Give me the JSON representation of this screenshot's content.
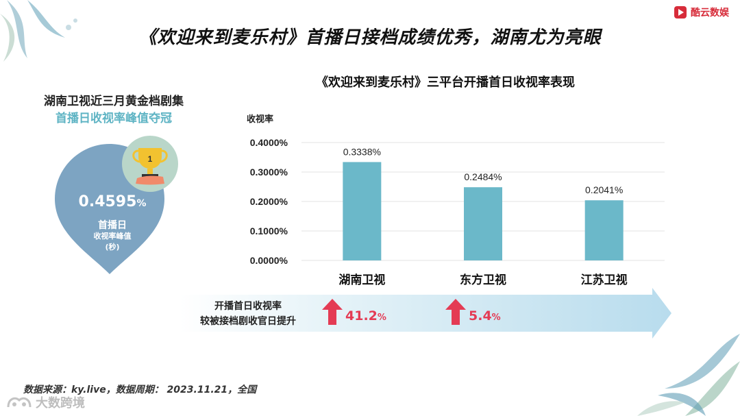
{
  "brand": {
    "name": "酷云数娱",
    "color": "#d72c3a"
  },
  "title": "《欢迎来到麦乐村》首播日接档成绩优秀，湖南尤为亮眼",
  "left_panel": {
    "line1": "湖南卫视近三月黄金档剧集",
    "line2": "首播日收视率峰值夺冠",
    "peak_value": "0.4595",
    "peak_unit": "%",
    "peak_label1": "首播日",
    "peak_label2": "收视率峰值",
    "peak_label3": "(秒)",
    "trophy_rank": "1"
  },
  "chart_data": {
    "type": "bar",
    "title": "《欢迎来到麦乐村》三平台开播首日收视率表现",
    "ylabel": "收视率",
    "xlabel": "",
    "categories": [
      "湖南卫视",
      "东方卫视",
      "江苏卫视"
    ],
    "values": [
      0.3338,
      0.2484,
      0.2041
    ],
    "value_labels": [
      "0.3338%",
      "0.2484%",
      "0.2041%"
    ],
    "ylim": [
      0,
      0.4
    ],
    "yticks": [
      0,
      0.1,
      0.2,
      0.3,
      0.4
    ],
    "ytick_labels": [
      "0.0000%",
      "0.1000%",
      "0.2000%",
      "0.3000%",
      "0.4000%"
    ],
    "grid": true,
    "bar_color": "#6bb8c9"
  },
  "band": {
    "line1": "开播首日收视率",
    "line2": "较被接档剧收官日提升",
    "lifts": [
      {
        "value": "41.2",
        "unit": "%"
      },
      {
        "value": "5.4",
        "unit": "%"
      }
    ],
    "accent": "#e43b54"
  },
  "source": "数据来源：ky.live，数据周期：  2023.11.21，全国",
  "watermark": "大数跨境"
}
